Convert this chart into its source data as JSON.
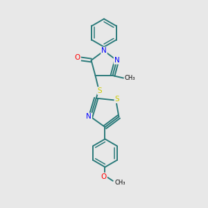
{
  "background_color": "#e8e8e8",
  "atom_colors": {
    "N": "#0000ff",
    "O": "#ff0000",
    "S": "#cccc00",
    "C": "#000000"
  },
  "bond_color": "#2a7a7a",
  "figsize": [
    3.0,
    3.0
  ],
  "dpi": 100
}
